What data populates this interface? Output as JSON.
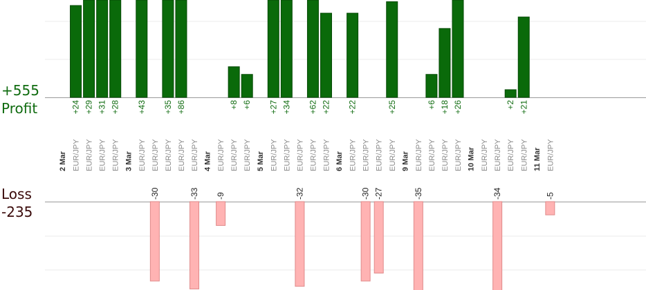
{
  "profit_panel": {
    "total": "+555",
    "label": "Profit"
  },
  "loss_panel": {
    "total": "-235",
    "label": "Loss"
  },
  "colors": {
    "profit_bar": "#0a6a0a",
    "profit_bar_border": "#064a06",
    "loss_bar": "#ffb3b3",
    "loss_bar_border": "#e08a8a",
    "profit_text": "#0f6b0f",
    "loss_text": "#3a0a0a",
    "pair_text": "#8a8a8a",
    "date_text": "#333333",
    "grid": "#ebebeb",
    "axis": "#999999"
  },
  "chart_data": {
    "type": "bar",
    "series": [
      {
        "name": "Profit",
        "values": [
          24,
          29,
          31,
          28,
          43,
          35,
          86,
          8,
          6,
          27,
          34,
          62,
          22,
          22,
          25,
          6,
          18,
          26,
          2,
          21
        ]
      },
      {
        "name": "Loss",
        "values": [
          -30,
          -33,
          -9,
          -32,
          -30,
          -27,
          -35,
          -34,
          -5
        ]
      }
    ],
    "slots": [
      {
        "date": "2 Mar"
      },
      {
        "pair": "EUR/JPY",
        "profit": 24
      },
      {
        "pair": "EUR/JPY",
        "profit": 29
      },
      {
        "pair": "EUR/JPY",
        "profit": 31
      },
      {
        "pair": "EUR/JPY",
        "profit": 28
      },
      {
        "date": "3 Mar"
      },
      {
        "pair": "EUR/JPY",
        "profit": 43
      },
      {
        "pair": "EUR/JPY",
        "loss": -30
      },
      {
        "pair": "EUR/JPY",
        "profit": 35
      },
      {
        "pair": "EUR/JPY",
        "profit": 86
      },
      {
        "pair": "EUR/JPY",
        "loss": -33
      },
      {
        "date": "4 Mar"
      },
      {
        "pair": "EUR/JPY",
        "loss": -9
      },
      {
        "pair": "EUR/JPY",
        "profit": 8
      },
      {
        "pair": "EUR/JPY",
        "profit": 6
      },
      {
        "date": "5 Mar"
      },
      {
        "pair": "EUR/JPY",
        "profit": 27
      },
      {
        "pair": "EUR/JPY",
        "profit": 34
      },
      {
        "pair": "EUR/JPY",
        "loss": -32
      },
      {
        "pair": "EUR/JPY",
        "profit": 62
      },
      {
        "pair": "EUR/JPY",
        "profit": 22
      },
      {
        "date": "6 Mar"
      },
      {
        "pair": "EUR/JPY",
        "profit": 22
      },
      {
        "pair": "EUR/JPY",
        "loss": -30
      },
      {
        "pair": "EUR/JPY",
        "loss": -27
      },
      {
        "pair": "EUR/JPY",
        "profit": 25
      },
      {
        "date": "9 Mar"
      },
      {
        "pair": "EUR/JPY",
        "loss": -35
      },
      {
        "pair": "EUR/JPY",
        "profit": 6
      },
      {
        "pair": "EUR/JPY",
        "profit": 18
      },
      {
        "pair": "EUR/JPY",
        "profit": 26
      },
      {
        "date": "10 Mar"
      },
      {
        "pair": "EUR/JPY"
      },
      {
        "pair": "EUR/JPY",
        "loss": -34
      },
      {
        "pair": "EUR/JPY",
        "profit": 2
      },
      {
        "pair": "EUR/JPY",
        "profit": 21
      },
      {
        "date": "11 Mar"
      },
      {
        "pair": "EUR/JPY",
        "loss": -5
      }
    ],
    "profit_axis_max": 24,
    "loss_axis_max": 30,
    "grid": true
  }
}
